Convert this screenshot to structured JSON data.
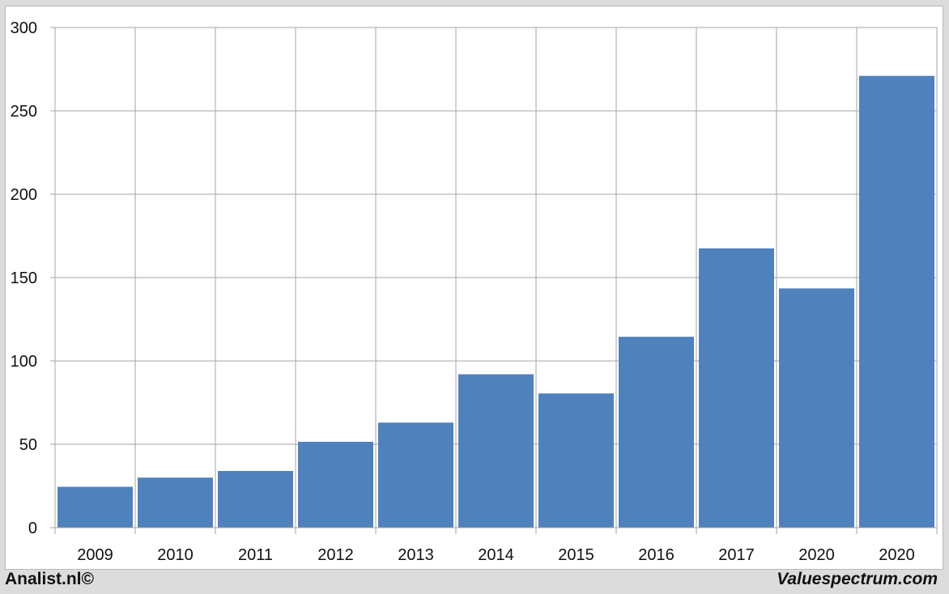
{
  "colors": {
    "bar": "#4f81bd",
    "grid": "#a6a6a6",
    "background": "#ffffff",
    "frame": "#dcdcdc"
  },
  "footer": {
    "left_text": "Analist.nl©",
    "right_text": "Valuespectrum.com"
  },
  "chart_data": {
    "type": "bar",
    "categories": [
      "2009",
      "2010",
      "2011",
      "2012",
      "2013",
      "2014",
      "2015",
      "2016",
      "2017",
      "2020",
      "2020"
    ],
    "values": [
      24.5,
      30,
      34,
      51.5,
      63,
      92,
      80.5,
      114.5,
      167.5,
      143.5,
      271
    ],
    "title": "",
    "xlabel": "",
    "ylabel": "",
    "ylim": [
      0,
      300
    ],
    "yticks": [
      "0",
      "50",
      "100",
      "150",
      "200",
      "250",
      "300"
    ],
    "grid": true,
    "legend": "none"
  }
}
